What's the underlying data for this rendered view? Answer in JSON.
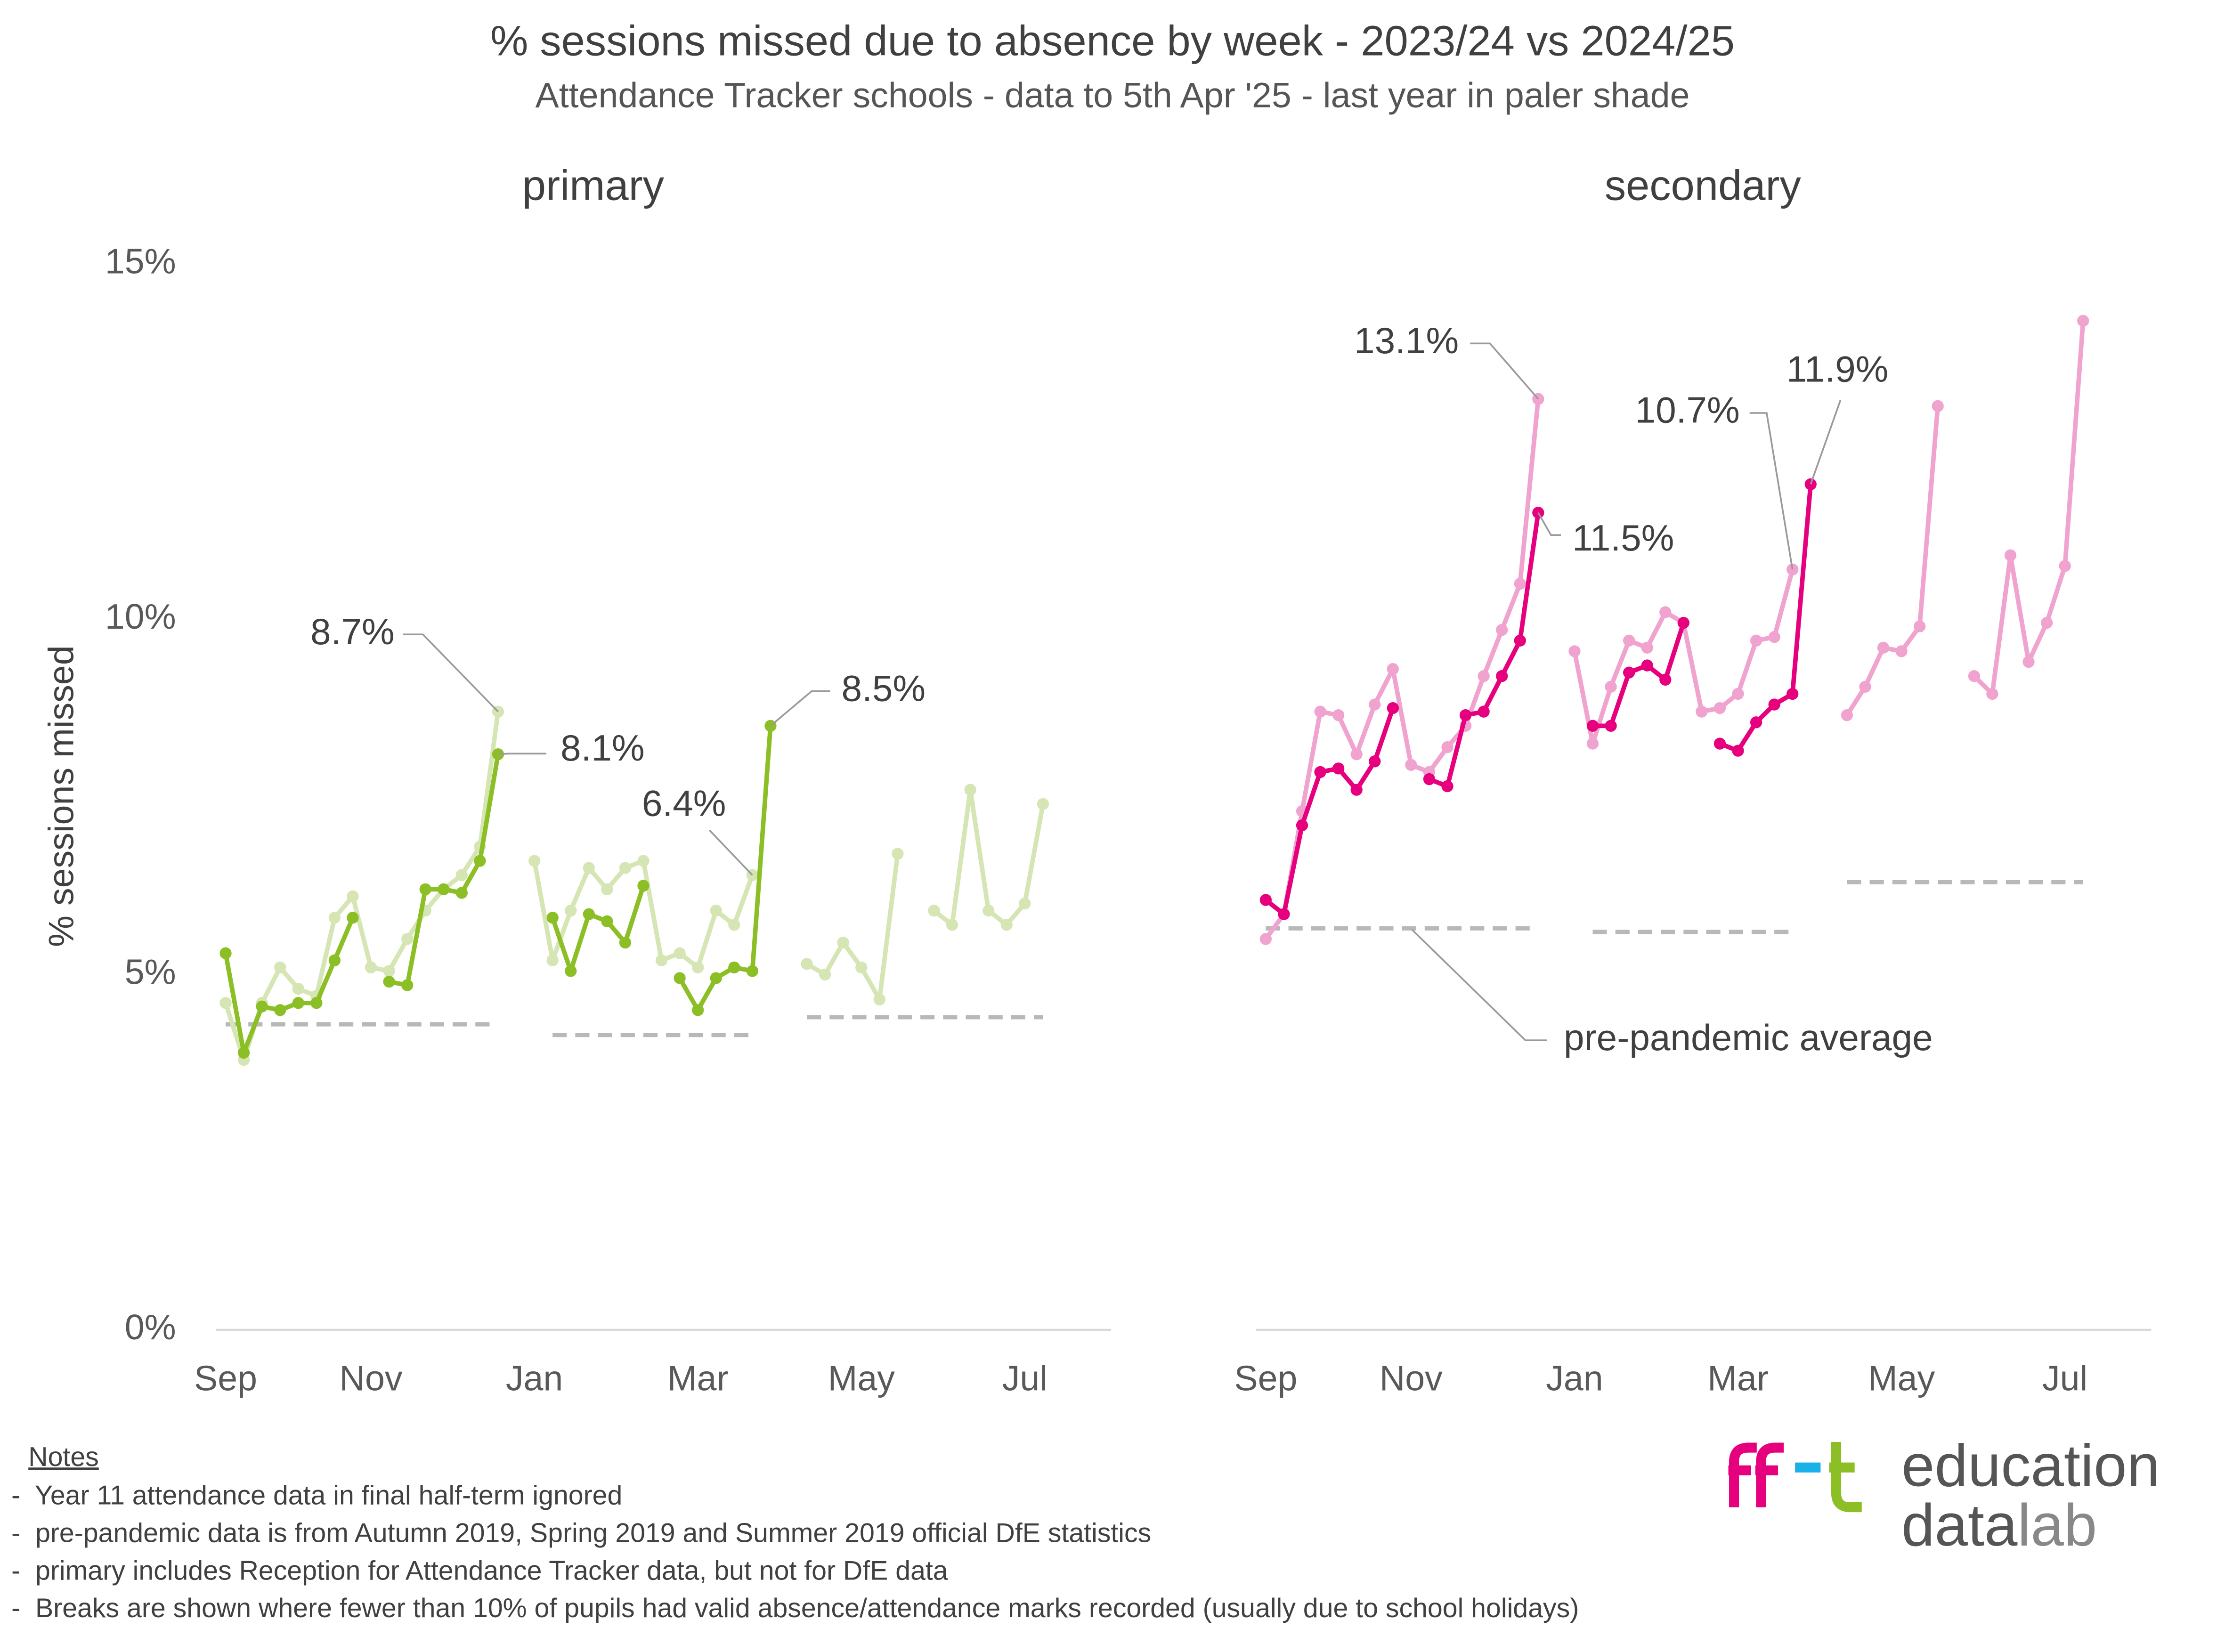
{
  "header": {
    "title": "% sessions missed due to absence by week - 2023/24 vs 2024/25",
    "subtitle": "Attendance Tracker schools - data to 5th Apr '25 - last year in paler shade"
  },
  "chart_data": [
    {
      "type": "line",
      "title": "primary",
      "ylabel": "% sessions missed",
      "categories": [
        "Sep",
        null,
        null,
        null,
        null,
        null,
        null,
        null,
        "Nov",
        null,
        null,
        null,
        null,
        null,
        null,
        null,
        null,
        "Jan",
        null,
        null,
        null,
        null,
        null,
        null,
        null,
        null,
        "Mar",
        null,
        null,
        null,
        null,
        null,
        null,
        null,
        null,
        "May",
        null,
        null,
        null,
        null,
        null,
        null,
        null,
        null,
        "Jul",
        null
      ],
      "ylim": [
        0,
        15
      ],
      "yticks": [
        {
          "value": 0,
          "label": "0%"
        },
        {
          "value": 5,
          "label": "5%"
        },
        {
          "value": 10,
          "label": "10%"
        },
        {
          "value": 15,
          "label": "15%"
        }
      ],
      "series": [
        {
          "color": "#d5e5b3",
          "markers": true,
          "values": [
            4.6,
            3.8,
            4.6,
            5.1,
            4.8,
            4.7,
            5.8,
            6.1,
            5.1,
            5.05,
            5.5,
            5.9,
            6.2,
            6.4,
            6.8,
            8.7,
            null,
            6.6,
            5.2,
            5.9,
            6.5,
            6.2,
            6.5,
            6.6,
            5.2,
            5.3,
            5.1,
            5.9,
            5.7,
            6.4,
            null,
            null,
            5.15,
            5.0,
            5.45,
            5.1,
            4.65,
            6.7,
            null,
            5.9,
            5.7,
            7.6,
            5.9,
            5.7,
            6.0,
            7.4
          ],
          "value_labels": [
            null,
            null,
            null,
            null,
            null,
            null,
            null,
            null,
            null,
            null,
            null,
            null,
            null,
            null,
            null,
            "8.7%",
            null,
            null,
            null,
            null,
            null,
            null,
            null,
            null,
            null,
            null,
            null,
            null,
            null,
            "6.4%",
            null,
            null,
            null,
            null,
            null,
            null,
            null,
            null,
            null,
            null,
            null,
            null,
            null,
            null,
            null,
            null
          ]
        },
        {
          "color": "#8cbf26",
          "markers": true,
          "values": [
            5.3,
            3.9,
            4.55,
            4.5,
            4.6,
            4.6,
            5.2,
            5.8,
            null,
            4.9,
            4.85,
            6.2,
            6.2,
            6.15,
            6.6,
            8.1,
            null,
            null,
            5.8,
            5.05,
            5.85,
            5.75,
            5.45,
            6.25,
            null,
            4.95,
            4.5,
            4.95,
            5.1,
            5.05,
            8.5,
            null,
            null,
            null,
            null,
            null,
            null,
            null,
            null,
            null,
            null,
            null,
            null,
            null,
            null,
            null
          ],
          "value_labels": [
            null,
            null,
            null,
            null,
            null,
            null,
            null,
            null,
            null,
            null,
            null,
            null,
            null,
            null,
            null,
            "8.1%",
            null,
            null,
            null,
            null,
            null,
            null,
            null,
            null,
            null,
            null,
            null,
            null,
            null,
            null,
            "8.5%",
            null,
            null,
            null,
            null,
            null,
            null,
            null,
            null,
            null,
            null,
            null,
            null,
            null,
            null,
            null
          ]
        },
        {
          "color": "#b8b8b8",
          "dashed": true,
          "values": [
            4.3,
            4.3,
            4.3,
            4.3,
            4.3,
            4.3,
            4.3,
            4.3,
            4.3,
            4.3,
            4.3,
            4.3,
            4.3,
            4.3,
            4.3,
            4.3,
            null,
            null,
            4.15,
            4.15,
            4.15,
            4.15,
            4.15,
            4.15,
            4.15,
            4.15,
            4.15,
            4.15,
            4.15,
            4.15,
            null,
            null,
            4.4,
            4.4,
            4.4,
            4.4,
            4.4,
            4.4,
            4.4,
            4.4,
            4.4,
            4.4,
            4.4,
            4.4,
            4.4,
            4.4
          ]
        }
      ]
    },
    {
      "type": "line",
      "title": "secondary",
      "categories": [
        "Sep",
        null,
        null,
        null,
        null,
        null,
        null,
        null,
        "Nov",
        null,
        null,
        null,
        null,
        null,
        null,
        null,
        null,
        "Jan",
        null,
        null,
        null,
        null,
        null,
        null,
        null,
        null,
        "Mar",
        null,
        null,
        null,
        null,
        null,
        null,
        null,
        null,
        "May",
        null,
        null,
        null,
        null,
        null,
        null,
        null,
        null,
        "Jul",
        null
      ],
      "ylim": [
        0,
        15
      ],
      "annotation": "pre-pandemic average",
      "series": [
        {
          "color": "#f0a3cf",
          "markers": true,
          "values": [
            5.5,
            5.85,
            7.3,
            8.7,
            8.65,
            8.1,
            8.8,
            9.3,
            7.95,
            7.85,
            8.2,
            8.5,
            9.2,
            9.85,
            10.5,
            13.1,
            null,
            9.55,
            8.25,
            9.05,
            9.7,
            9.6,
            10.1,
            9.95,
            8.7,
            8.75,
            8.95,
            9.7,
            9.75,
            10.7,
            null,
            null,
            8.65,
            9.05,
            9.6,
            9.55,
            9.9,
            13.0,
            null,
            9.2,
            8.95,
            10.9,
            9.4,
            9.95,
            10.75,
            14.2
          ],
          "value_labels": [
            null,
            null,
            null,
            null,
            null,
            null,
            null,
            null,
            null,
            null,
            null,
            null,
            null,
            null,
            null,
            "13.1%",
            null,
            null,
            null,
            null,
            null,
            null,
            null,
            null,
            null,
            null,
            null,
            null,
            null,
            "10.7%",
            null,
            null,
            null,
            null,
            null,
            null,
            null,
            null,
            null,
            null,
            null,
            null,
            null,
            null,
            null,
            null
          ]
        },
        {
          "color": "#e6007e",
          "markers": true,
          "values": [
            6.05,
            5.85,
            7.1,
            7.85,
            7.9,
            7.6,
            8.0,
            8.75,
            null,
            7.75,
            7.65,
            8.65,
            8.7,
            9.2,
            9.7,
            11.5,
            null,
            null,
            8.5,
            8.5,
            9.25,
            9.35,
            9.15,
            9.95,
            null,
            8.25,
            8.15,
            8.55,
            8.8,
            8.95,
            11.9,
            null,
            null,
            null,
            null,
            null,
            null,
            null,
            null,
            null,
            null,
            null,
            null,
            null,
            null,
            null
          ],
          "value_labels": [
            null,
            null,
            null,
            null,
            null,
            null,
            null,
            null,
            null,
            null,
            null,
            null,
            null,
            null,
            null,
            "11.5%",
            null,
            null,
            null,
            null,
            null,
            null,
            null,
            null,
            null,
            null,
            null,
            null,
            null,
            null,
            "11.9%",
            null,
            null,
            null,
            null,
            null,
            null,
            null,
            null,
            null,
            null,
            null,
            null,
            null,
            null,
            null
          ]
        },
        {
          "color": "#b8b8b8",
          "dashed": true,
          "values": [
            5.65,
            5.65,
            5.65,
            5.65,
            5.65,
            5.65,
            5.65,
            5.65,
            5.65,
            5.65,
            5.65,
            5.65,
            5.65,
            5.65,
            5.65,
            5.65,
            null,
            null,
            5.6,
            5.6,
            5.6,
            5.6,
            5.6,
            5.6,
            5.6,
            5.6,
            5.6,
            5.6,
            5.6,
            5.6,
            null,
            null,
            6.3,
            6.3,
            6.3,
            6.3,
            6.3,
            6.3,
            6.3,
            6.3,
            6.3,
            6.3,
            6.3,
            6.3,
            6.3,
            6.3
          ]
        }
      ]
    }
  ],
  "notes": {
    "heading": "Notes",
    "items": [
      "-  Year 11 attendance data in final half-term ignored",
      "-  pre-pandemic data is from Autumn 2019, Spring 2019 and Summer 2019 official DfE statistics",
      "-  primary includes Reception for Attendance Tracker data, but not for DfE data",
      "-  Breaks are shown where fewer than 10% of pupils had valid absence/attendance marks recorded (usually due to school holidays)"
    ]
  },
  "logo": {
    "line1": "education",
    "line2a": "data",
    "line2b": "lab"
  }
}
